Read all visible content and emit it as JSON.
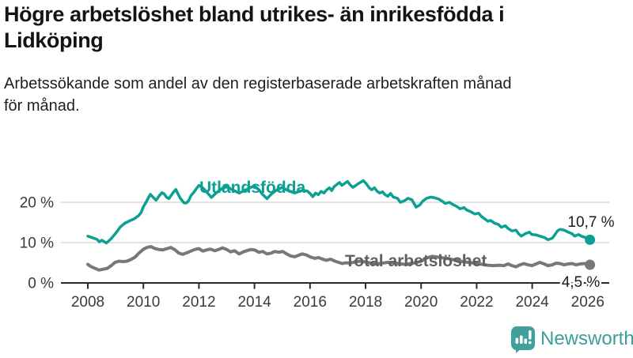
{
  "header": {
    "title_line1": "Högre arbetslöshet bland utrikes- än inrikesfödda i",
    "title_line2": "Lidköping",
    "subtitle_line1": "Arbetssökande som andel av den registerbaserade arbetskraften månad",
    "subtitle_line2": "för månad."
  },
  "chart_data": {
    "type": "line",
    "title": "Högre arbetslöshet bland utrikes- än inrikesfödda i Lidköping",
    "subtitle": "Arbetssökande som andel av den registerbaserade arbetskraften månad för månad.",
    "xlabel": "",
    "ylabel": "",
    "x_axis": {
      "ticks": [
        2008,
        2010,
        2012,
        2014,
        2016,
        2018,
        2020,
        2022,
        2024,
        2026
      ],
      "range": [
        2007.0,
        2027.0
      ]
    },
    "y_axis": {
      "unit": "%",
      "ticks": [
        {
          "label": "0 %",
          "value": 0
        },
        {
          "label": "10 %",
          "value": 10
        },
        {
          "label": "20 %",
          "value": 20
        }
      ],
      "range": [
        0,
        27
      ],
      "gridlines": true
    },
    "legend_position": "inline-labels",
    "series": [
      {
        "name": "Utlandsfödda",
        "color": "#0ca092",
        "end_label": "10,7 %",
        "end_value": 10.7,
        "points": [
          [
            2008.0,
            11.6
          ],
          [
            2008.17,
            11.2
          ],
          [
            2008.33,
            10.8
          ],
          [
            2008.42,
            10.2
          ],
          [
            2008.5,
            10.6
          ],
          [
            2008.67,
            9.9
          ],
          [
            2008.83,
            10.9
          ],
          [
            2009.0,
            12.3
          ],
          [
            2009.17,
            13.9
          ],
          [
            2009.33,
            14.8
          ],
          [
            2009.5,
            15.4
          ],
          [
            2009.67,
            15.9
          ],
          [
            2009.83,
            16.7
          ],
          [
            2009.92,
            17.5
          ],
          [
            2010.0,
            18.9
          ],
          [
            2010.08,
            19.8
          ],
          [
            2010.17,
            21.0
          ],
          [
            2010.25,
            22.0
          ],
          [
            2010.33,
            21.4
          ],
          [
            2010.46,
            20.5
          ],
          [
            2010.58,
            21.7
          ],
          [
            2010.67,
            22.4
          ],
          [
            2010.75,
            22.1
          ],
          [
            2010.83,
            21.3
          ],
          [
            2010.92,
            20.9
          ],
          [
            2011.0,
            21.7
          ],
          [
            2011.08,
            22.5
          ],
          [
            2011.17,
            23.2
          ],
          [
            2011.25,
            22.0
          ],
          [
            2011.33,
            21.0
          ],
          [
            2011.46,
            19.9
          ],
          [
            2011.54,
            19.8
          ],
          [
            2011.63,
            20.4
          ],
          [
            2011.71,
            21.6
          ],
          [
            2011.83,
            22.6
          ],
          [
            2011.92,
            23.5
          ],
          [
            2012.0,
            24.2
          ],
          [
            2012.1,
            23.8
          ],
          [
            2012.2,
            23.2
          ],
          [
            2012.3,
            22.4
          ],
          [
            2012.45,
            21.2
          ],
          [
            2012.6,
            22.2
          ],
          [
            2012.75,
            23.0
          ],
          [
            2012.9,
            23.8
          ],
          [
            2013.0,
            24.0
          ],
          [
            2013.15,
            23.3
          ],
          [
            2013.3,
            22.8
          ],
          [
            2013.45,
            22.3
          ],
          [
            2013.6,
            22.8
          ],
          [
            2013.75,
            23.3
          ],
          [
            2013.9,
            23.8
          ],
          [
            2014.0,
            24.0
          ],
          [
            2014.15,
            23.2
          ],
          [
            2014.3,
            21.9
          ],
          [
            2014.45,
            20.9
          ],
          [
            2014.6,
            22.0
          ],
          [
            2014.75,
            22.8
          ],
          [
            2014.9,
            23.4
          ],
          [
            2015.0,
            23.7
          ],
          [
            2015.15,
            23.1
          ],
          [
            2015.3,
            22.7
          ],
          [
            2015.45,
            22.3
          ],
          [
            2015.6,
            22.7
          ],
          [
            2015.75,
            23.0
          ],
          [
            2015.9,
            22.8
          ],
          [
            2016.0,
            22.2
          ],
          [
            2016.1,
            21.4
          ],
          [
            2016.2,
            22.3
          ],
          [
            2016.3,
            21.9
          ],
          [
            2016.4,
            22.7
          ],
          [
            2016.5,
            22.3
          ],
          [
            2016.6,
            23.1
          ],
          [
            2016.7,
            23.6
          ],
          [
            2016.78,
            22.9
          ],
          [
            2016.87,
            23.9
          ],
          [
            2016.96,
            24.4
          ],
          [
            2017.06,
            24.9
          ],
          [
            2017.15,
            24.2
          ],
          [
            2017.25,
            24.7
          ],
          [
            2017.35,
            25.2
          ],
          [
            2017.44,
            24.4
          ],
          [
            2017.54,
            23.7
          ],
          [
            2017.63,
            24.1
          ],
          [
            2017.73,
            24.6
          ],
          [
            2017.83,
            25.0
          ],
          [
            2017.92,
            25.4
          ],
          [
            2018.04,
            24.5
          ],
          [
            2018.13,
            23.6
          ],
          [
            2018.22,
            23.1
          ],
          [
            2018.32,
            23.6
          ],
          [
            2018.42,
            22.7
          ],
          [
            2018.51,
            22.3
          ],
          [
            2018.61,
            22.6
          ],
          [
            2018.7,
            21.9
          ],
          [
            2018.8,
            21.5
          ],
          [
            2018.9,
            22.2
          ],
          [
            2019.0,
            21.3
          ],
          [
            2019.15,
            21.0
          ],
          [
            2019.25,
            20.0
          ],
          [
            2019.4,
            20.4
          ],
          [
            2019.53,
            21.0
          ],
          [
            2019.67,
            20.6
          ],
          [
            2019.82,
            18.8
          ],
          [
            2019.96,
            19.4
          ],
          [
            2020.06,
            20.3
          ],
          [
            2020.2,
            21.0
          ],
          [
            2020.35,
            21.3
          ],
          [
            2020.5,
            21.1
          ],
          [
            2020.63,
            20.8
          ],
          [
            2020.78,
            20.2
          ],
          [
            2020.87,
            19.7
          ],
          [
            2021.02,
            20.0
          ],
          [
            2021.16,
            19.4
          ],
          [
            2021.3,
            18.9
          ],
          [
            2021.4,
            18.4
          ],
          [
            2021.55,
            18.7
          ],
          [
            2021.64,
            18.1
          ],
          [
            2021.78,
            17.7
          ],
          [
            2021.93,
            17.1
          ],
          [
            2022.07,
            17.3
          ],
          [
            2022.17,
            16.5
          ],
          [
            2022.31,
            15.8
          ],
          [
            2022.41,
            15.3
          ],
          [
            2022.5,
            15.5
          ],
          [
            2022.65,
            14.8
          ],
          [
            2022.79,
            14.5
          ],
          [
            2022.89,
            13.8
          ],
          [
            2023.03,
            14.2
          ],
          [
            2023.13,
            13.5
          ],
          [
            2023.27,
            12.9
          ],
          [
            2023.42,
            13.1
          ],
          [
            2023.51,
            12.2
          ],
          [
            2023.61,
            11.6
          ],
          [
            2023.75,
            12.2
          ],
          [
            2023.9,
            12.6
          ],
          [
            2023.99,
            12.0
          ],
          [
            2024.14,
            11.9
          ],
          [
            2024.28,
            11.6
          ],
          [
            2024.43,
            11.3
          ],
          [
            2024.57,
            10.7
          ],
          [
            2024.72,
            11.1
          ],
          [
            2024.81,
            11.9
          ],
          [
            2024.91,
            12.9
          ],
          [
            2025.0,
            13.3
          ],
          [
            2025.15,
            13.1
          ],
          [
            2025.29,
            12.6
          ],
          [
            2025.44,
            12.2
          ],
          [
            2025.53,
            11.6
          ],
          [
            2025.67,
            12.0
          ],
          [
            2025.77,
            11.6
          ],
          [
            2025.91,
            11.3
          ],
          [
            2026.0,
            11.0
          ],
          [
            2026.08,
            10.7
          ]
        ]
      },
      {
        "name": "Total arbetslöshet",
        "color": "#77777c",
        "end_label": "4,5 %",
        "end_value": 4.5,
        "points": [
          [
            2008.0,
            4.6
          ],
          [
            2008.1,
            4.1
          ],
          [
            2008.26,
            3.6
          ],
          [
            2008.4,
            3.2
          ],
          [
            2008.55,
            3.4
          ],
          [
            2008.7,
            3.6
          ],
          [
            2008.84,
            4.3
          ],
          [
            2008.98,
            5.1
          ],
          [
            2009.12,
            5.4
          ],
          [
            2009.27,
            5.3
          ],
          [
            2009.41,
            5.4
          ],
          [
            2009.55,
            5.8
          ],
          [
            2009.7,
            6.4
          ],
          [
            2009.84,
            7.4
          ],
          [
            2009.99,
            8.3
          ],
          [
            2010.13,
            8.8
          ],
          [
            2010.27,
            9.0
          ],
          [
            2010.42,
            8.5
          ],
          [
            2010.56,
            8.3
          ],
          [
            2010.7,
            8.2
          ],
          [
            2010.85,
            8.5
          ],
          [
            2010.99,
            8.8
          ],
          [
            2011.14,
            8.2
          ],
          [
            2011.28,
            7.4
          ],
          [
            2011.42,
            7.1
          ],
          [
            2011.57,
            7.5
          ],
          [
            2011.71,
            7.9
          ],
          [
            2011.85,
            8.3
          ],
          [
            2012.0,
            8.5
          ],
          [
            2012.14,
            7.9
          ],
          [
            2012.28,
            8.2
          ],
          [
            2012.42,
            8.4
          ],
          [
            2012.57,
            8.0
          ],
          [
            2012.71,
            8.3
          ],
          [
            2012.85,
            8.7
          ],
          [
            2013.0,
            8.3
          ],
          [
            2013.14,
            7.7
          ],
          [
            2013.28,
            8.0
          ],
          [
            2013.45,
            7.2
          ],
          [
            2013.6,
            7.7
          ],
          [
            2013.73,
            8.0
          ],
          [
            2013.87,
            8.3
          ],
          [
            2014.0,
            8.2
          ],
          [
            2014.16,
            7.6
          ],
          [
            2014.3,
            7.8
          ],
          [
            2014.45,
            7.2
          ],
          [
            2014.6,
            7.4
          ],
          [
            2014.73,
            7.8
          ],
          [
            2014.88,
            7.6
          ],
          [
            2015.02,
            7.8
          ],
          [
            2015.16,
            7.2
          ],
          [
            2015.3,
            6.7
          ],
          [
            2015.45,
            6.5
          ],
          [
            2015.6,
            6.9
          ],
          [
            2015.73,
            7.2
          ],
          [
            2015.88,
            6.9
          ],
          [
            2016.03,
            6.4
          ],
          [
            2016.17,
            6.1
          ],
          [
            2016.3,
            6.3
          ],
          [
            2016.45,
            5.9
          ],
          [
            2016.6,
            5.6
          ],
          [
            2016.74,
            5.9
          ],
          [
            2016.9,
            5.4
          ],
          [
            2017.03,
            5.1
          ],
          [
            2017.17,
            4.8
          ],
          [
            2017.27,
            5.0
          ],
          [
            2017.45,
            4.9
          ],
          [
            2017.6,
            5.2
          ],
          [
            2017.8,
            5.4
          ],
          [
            2018.0,
            5.2
          ],
          [
            2018.2,
            4.9
          ],
          [
            2018.4,
            4.7
          ],
          [
            2018.6,
            4.9
          ],
          [
            2018.8,
            5.1
          ],
          [
            2019.0,
            5.0
          ],
          [
            2019.2,
            4.8
          ],
          [
            2019.4,
            4.6
          ],
          [
            2019.6,
            4.8
          ],
          [
            2019.8,
            5.0
          ],
          [
            2020.0,
            5.4
          ],
          [
            2020.2,
            6.2
          ],
          [
            2020.4,
            6.6
          ],
          [
            2020.6,
            6.4
          ],
          [
            2020.8,
            6.2
          ],
          [
            2021.0,
            6.0
          ],
          [
            2021.2,
            5.7
          ],
          [
            2021.4,
            5.4
          ],
          [
            2021.6,
            5.2
          ],
          [
            2021.8,
            5.0
          ],
          [
            2022.0,
            4.8
          ],
          [
            2022.2,
            4.6
          ],
          [
            2022.4,
            4.4
          ],
          [
            2022.6,
            4.3
          ],
          [
            2022.8,
            4.4
          ],
          [
            2022.98,
            4.3
          ],
          [
            2023.13,
            4.7
          ],
          [
            2023.27,
            4.3
          ],
          [
            2023.42,
            4.0
          ],
          [
            2023.56,
            4.5
          ],
          [
            2023.7,
            4.8
          ],
          [
            2023.85,
            4.5
          ],
          [
            2023.99,
            4.3
          ],
          [
            2024.14,
            4.7
          ],
          [
            2024.28,
            5.1
          ],
          [
            2024.43,
            4.7
          ],
          [
            2024.57,
            4.3
          ],
          [
            2024.72,
            4.5
          ],
          [
            2024.86,
            4.9
          ],
          [
            2025.0,
            4.8
          ],
          [
            2025.15,
            4.5
          ],
          [
            2025.29,
            4.7
          ],
          [
            2025.44,
            4.8
          ],
          [
            2025.58,
            4.5
          ],
          [
            2025.73,
            4.7
          ],
          [
            2025.87,
            4.8
          ],
          [
            2026.0,
            4.7
          ],
          [
            2026.08,
            4.5
          ]
        ]
      }
    ]
  },
  "logo": {
    "brand": "Newsworthy",
    "text_color": "#3d9e97",
    "icon_color": "#41a09b"
  }
}
